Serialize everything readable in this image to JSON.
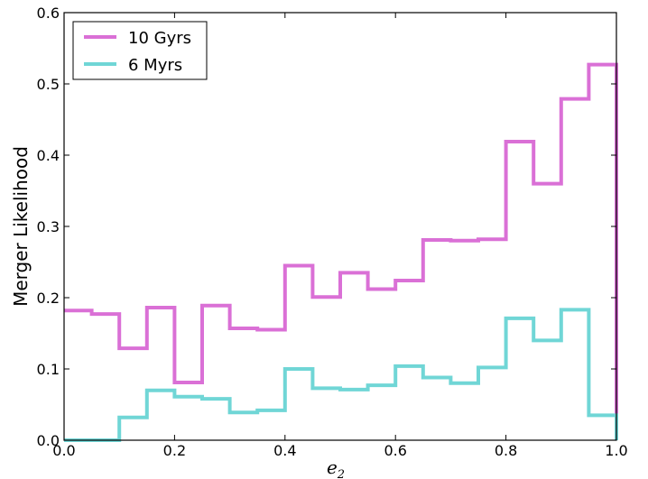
{
  "chart_data": {
    "type": "line",
    "subtype": "step-histogram",
    "title": "",
    "xlabel": "e",
    "xlabel_subscript": "2",
    "ylabel": "Merger Likelihood",
    "xlim": [
      0.0,
      1.0
    ],
    "ylim": [
      0.0,
      0.6
    ],
    "xticks": [
      "0.0",
      "0.2",
      "0.4",
      "0.6",
      "0.8",
      "1.0"
    ],
    "xtick_values": [
      0.0,
      0.2,
      0.4,
      0.6,
      0.8,
      1.0
    ],
    "yticks": [
      "0.0",
      "0.1",
      "0.2",
      "0.3",
      "0.4",
      "0.5",
      "0.6"
    ],
    "ytick_values": [
      0.0,
      0.1,
      0.2,
      0.3,
      0.4,
      0.5,
      0.6
    ],
    "grid": false,
    "legend_position": "top-left",
    "bin_edges": [
      0.0,
      0.05,
      0.1,
      0.15,
      0.2,
      0.25,
      0.3,
      0.35,
      0.4,
      0.45,
      0.5,
      0.55,
      0.6,
      0.65,
      0.7,
      0.75,
      0.8,
      0.85,
      0.9,
      0.95,
      1.0
    ],
    "series": [
      {
        "name": "10 Gyrs",
        "color": "#da70d6",
        "values": [
          0.182,
          0.177,
          0.129,
          0.186,
          0.081,
          0.189,
          0.157,
          0.155,
          0.245,
          0.201,
          0.235,
          0.212,
          0.224,
          0.281,
          0.28,
          0.282,
          0.419,
          0.36,
          0.479,
          0.527
        ]
      },
      {
        "name": "6 Myrs",
        "color": "#70d6d6",
        "values": [
          0.0,
          0.0,
          0.032,
          0.07,
          0.061,
          0.058,
          0.039,
          0.042,
          0.1,
          0.073,
          0.071,
          0.077,
          0.104,
          0.088,
          0.08,
          0.102,
          0.171,
          0.14,
          0.183,
          0.035
        ]
      }
    ]
  }
}
